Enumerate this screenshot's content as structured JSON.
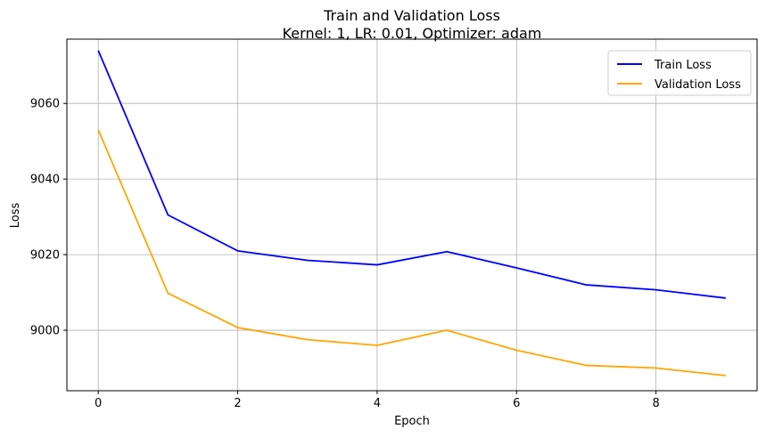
{
  "chart_data": {
    "type": "line",
    "title": "Train and Validation Loss",
    "subtitle": "Kernel: 1, LR: 0.01, Optimizer: adam",
    "xlabel": "Epoch",
    "ylabel": "Loss",
    "x": [
      0,
      1,
      2,
      3,
      4,
      5,
      6,
      7,
      8,
      9
    ],
    "xlim": [
      -0.45,
      9.45
    ],
    "ylim": [
      8984,
      9077
    ],
    "xticks": [
      0,
      2,
      4,
      6,
      8
    ],
    "yticks": [
      9000,
      9020,
      9040,
      9060
    ],
    "grid": true,
    "legend_position": "top-right",
    "series": [
      {
        "name": "Train Loss",
        "color": "#0000ff",
        "values": [
          9074,
          9030.5,
          9021,
          9018.5,
          9017.3,
          9020.8,
          9016.5,
          9012,
          9010.7,
          9008.5
        ]
      },
      {
        "name": "Validation Loss",
        "color": "#ffa500",
        "values": [
          9053,
          9009.8,
          9000.7,
          8997.5,
          8996,
          9000,
          8994.7,
          8990.7,
          8990,
          8988
        ]
      }
    ]
  }
}
